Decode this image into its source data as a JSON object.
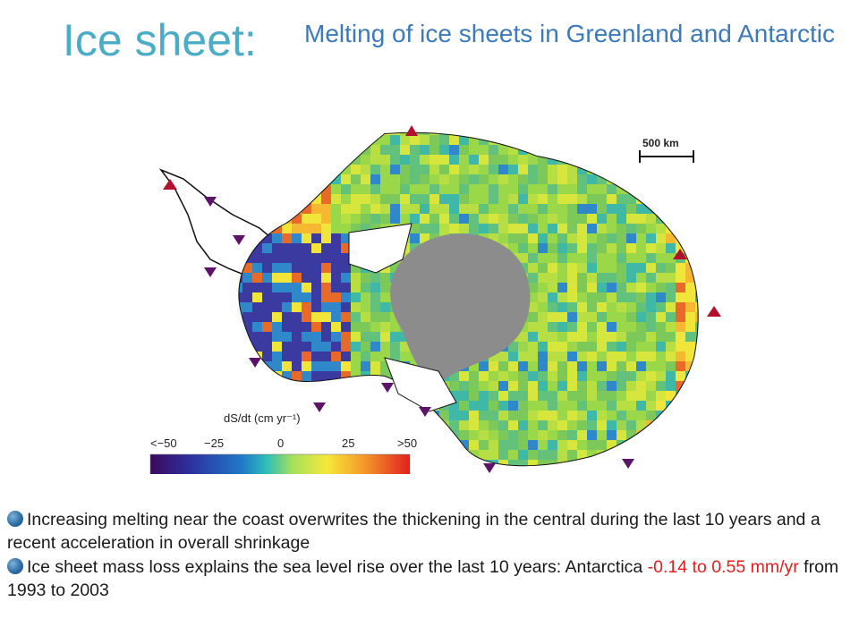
{
  "title": "Ice sheet:",
  "subtitle": "Melting of ice sheets in Greenland and Antarctic",
  "figure": {
    "scale_bar_label": "500 km",
    "legend": {
      "title": "dS/dt (cm yr⁻¹)",
      "ticks": [
        "<−50",
        "−25",
        "0",
        "25",
        ">50"
      ],
      "colors": [
        "#3b0a5a",
        "#2d2f9e",
        "#1f78c8",
        "#2fc0b8",
        "#a6e05a",
        "#f5e93a",
        "#f59b2a",
        "#e0201e"
      ]
    },
    "marker_colors": {
      "up": "#b0112e",
      "down": "#5c1468"
    }
  },
  "bullets": [
    {
      "parts": [
        {
          "text": "Increasing melting near the coast overwrites the thickening in the central during the last 10 years and a recent acceleration in overall shrinkage",
          "highlight": false
        }
      ]
    },
    {
      "parts": [
        {
          "text": "Ice sheet mass loss explains the sea level rise over the last 10 years: Antarctica ",
          "highlight": false
        },
        {
          "text": "-0.14 to 0.55 mm/yr",
          "highlight": true
        },
        {
          "text": " from 1993 to 2003",
          "highlight": false
        }
      ]
    }
  ]
}
